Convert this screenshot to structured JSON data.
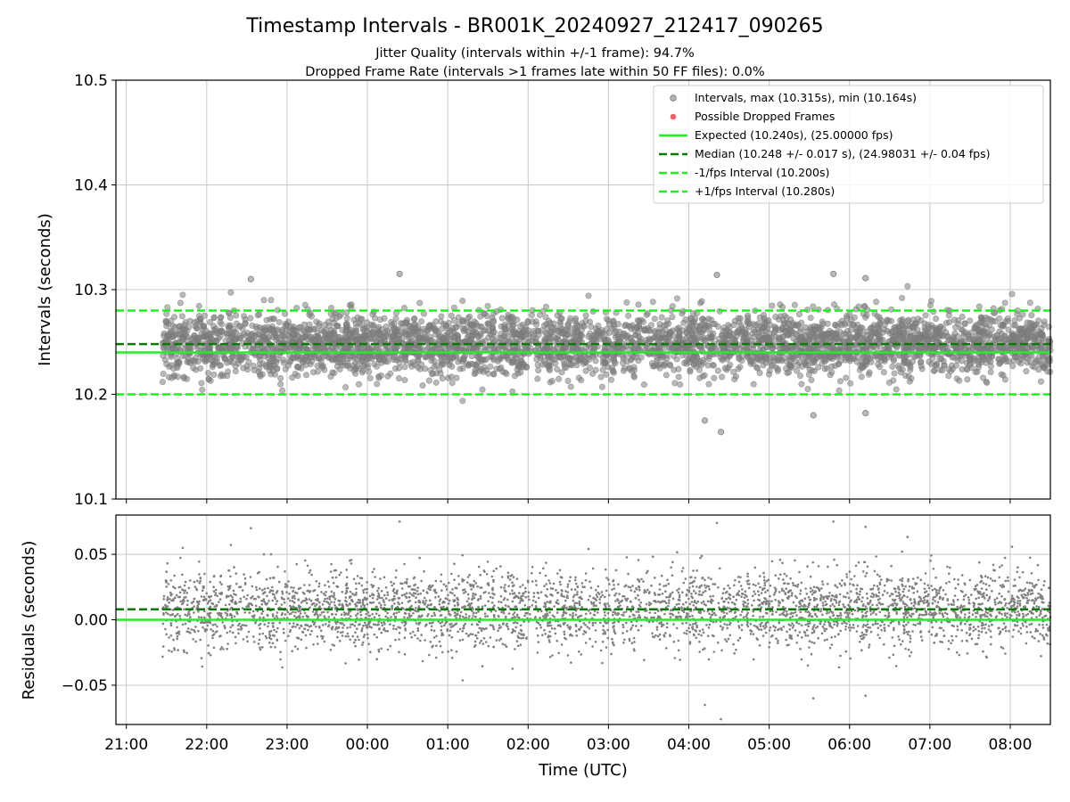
{
  "figure": {
    "title": "Timestamp Intervals - BR001K_20240927_212417_090265",
    "subtitle_lines": [
      "Jitter Quality (intervals within +/-1 frame): 94.7%",
      "Dropped Frame Rate (intervals >1 frames late within 50 FF files): 0.0%"
    ]
  },
  "colors": {
    "interval_points": "#808080",
    "dropped_points": "#e8474c",
    "expected_line": "#22ee22",
    "median_line": "#0b7a0b",
    "bound_lines": "#22ee22",
    "grid": "#c8c8c8"
  },
  "chart_data": [
    {
      "type": "scatter",
      "panel": "intervals",
      "ylabel": "Intervals (seconds)",
      "xlabel": "",
      "ylim": [
        10.1,
        10.5
      ],
      "yticks": [
        10.1,
        10.2,
        10.3,
        10.4,
        10.5
      ],
      "ytick_labels": [
        "10.1",
        "10.2",
        "10.3",
        "10.4",
        "10.5"
      ],
      "xlim_hours": [
        20.87,
        32.5
      ],
      "grid": true,
      "series": [
        {
          "name": "Intervals",
          "kind": "points",
          "x_range_hours": [
            21.45,
            32.5
          ],
          "center": 10.248,
          "spread": 0.017,
          "max": 10.315,
          "min": 10.164
        }
      ],
      "reference_lines": [
        {
          "name": "Expected",
          "y": 10.24,
          "style": "solid"
        },
        {
          "name": "Median",
          "y": 10.248,
          "style": "dashed"
        },
        {
          "name": "-1/fps Interval",
          "y": 10.2,
          "style": "dashed"
        },
        {
          "name": "+1/fps Interval",
          "y": 10.28,
          "style": "dashed"
        }
      ],
      "legend": {
        "placement": "top-right",
        "entries": [
          {
            "label": "Intervals, max (10.315s), min (10.164s)",
            "marker": "circle",
            "color_key": "interval_points"
          },
          {
            "label": "Possible Dropped Frames",
            "marker": "circle",
            "color_key": "dropped_points"
          },
          {
            "label": "Expected (10.240s), (25.00000 fps)",
            "marker": "solid",
            "color_key": "expected_line"
          },
          {
            "label": "Median (10.248 +/- 0.017 s), (24.98031 +/- 0.04 fps)",
            "marker": "dashed",
            "color_key": "median_line"
          },
          {
            "label": "-1/fps Interval (10.200s)",
            "marker": "dashed",
            "color_key": "bound_lines"
          },
          {
            "label": "+1/fps Interval (10.280s)",
            "marker": "dashed",
            "color_key": "bound_lines"
          }
        ]
      }
    },
    {
      "type": "scatter",
      "panel": "residuals",
      "ylabel": "Residuals (seconds)",
      "xlabel": "Time (UTC)",
      "ylim": [
        -0.08,
        0.08
      ],
      "yticks": [
        -0.05,
        0.0,
        0.05
      ],
      "ytick_labels": [
        "−0.05",
        "0.00",
        "0.05"
      ],
      "xlim_hours": [
        20.87,
        32.5
      ],
      "xticks_hours": [
        21,
        22,
        23,
        24,
        25,
        26,
        27,
        28,
        29,
        30,
        31,
        32
      ],
      "xtick_labels": [
        "21:00",
        "22:00",
        "23:00",
        "00:00",
        "01:00",
        "02:00",
        "03:00",
        "04:00",
        "05:00",
        "06:00",
        "07:00",
        "08:00"
      ],
      "grid": true,
      "series": [
        {
          "name": "Residuals",
          "kind": "points",
          "x_range_hours": [
            21.45,
            32.5
          ],
          "center": 0.008,
          "spread": 0.017,
          "max": 0.075,
          "min": -0.076
        }
      ],
      "reference_lines": [
        {
          "name": "Expected",
          "y": 0.0,
          "style": "solid"
        },
        {
          "name": "Median",
          "y": 0.008,
          "style": "dashed"
        }
      ]
    }
  ]
}
